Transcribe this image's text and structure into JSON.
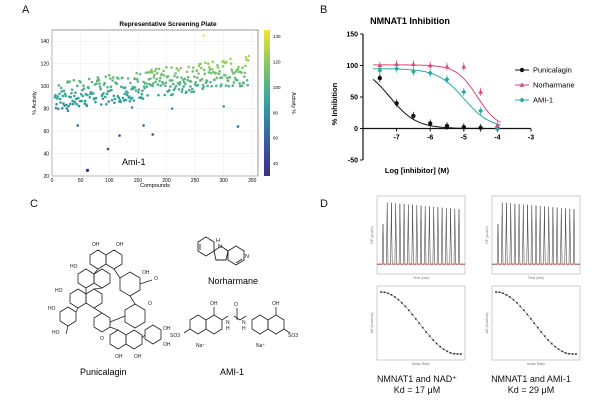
{
  "panels": {
    "a": "A",
    "b": "B",
    "c": "C",
    "d": "D"
  },
  "panel_a": {
    "chart_data": {
      "type": "scatter",
      "title": "Representative Screening Plate",
      "xlabel": "Compounds",
      "ylabel": "% Activity",
      "xlim": [
        0,
        360
      ],
      "ylim": [
        20,
        150
      ],
      "xticks": [
        "0",
        "50",
        "100",
        "150",
        "200",
        "250",
        "300",
        "350"
      ],
      "yticks": [
        "20",
        "40",
        "60",
        "80",
        "100",
        "120",
        "140"
      ],
      "colorbar": {
        "label": "Activity %",
        "ticks": [
          "40",
          "60",
          "80",
          "100",
          "120",
          "140"
        ],
        "range": [
          30,
          145
        ]
      },
      "annotation": "Ami-1",
      "highlight_point": {
        "x": 62,
        "y": 25
      },
      "outliers": [
        {
          "x": 265,
          "y": 145
        },
        {
          "x": 45,
          "y": 65
        },
        {
          "x": 118,
          "y": 56
        },
        {
          "x": 98,
          "y": 44
        },
        {
          "x": 160,
          "y": 65
        },
        {
          "x": 176,
          "y": 57
        },
        {
          "x": 325,
          "y": 64
        },
        {
          "x": 28,
          "y": 78
        },
        {
          "x": 210,
          "y": 80
        },
        {
          "x": 300,
          "y": 82
        },
        {
          "x": 140,
          "y": 81
        }
      ]
    }
  },
  "panel_b": {
    "chart_data": {
      "type": "line",
      "title": "NMNAT1 Inhibition",
      "xlabel": "Log [inhibitor] (M)",
      "ylabel": "% Inhibition",
      "xlim": [
        -8,
        -3
      ],
      "ylim": [
        -50,
        150
      ],
      "xticks": [
        "-7",
        "-6",
        "-5",
        "-4",
        "-3"
      ],
      "yticks": [
        "-50",
        "0",
        "50",
        "100",
        "150"
      ],
      "series": [
        {
          "name": "Punicalagin",
          "color": "#111111",
          "marker": "circle",
          "x": [
            -7.5,
            -7,
            -6.5,
            -6,
            -5.5,
            -5,
            -4.5,
            -4
          ],
          "y": [
            80,
            40,
            20,
            8,
            4,
            2,
            1,
            0
          ],
          "fit": {
            "top": 100,
            "bottom": 0,
            "logIC50": -7.2,
            "hill": 1.1
          }
        },
        {
          "name": "Norharmane",
          "color": "#e0457b",
          "marker": "triangle",
          "x": [
            -7.5,
            -7,
            -6.5,
            -6,
            -5.5,
            -5,
            -4.5,
            -4
          ],
          "y": [
            100,
            102,
            102,
            100,
            98,
            98,
            58,
            5
          ],
          "fit": {
            "top": 101,
            "bottom": 0,
            "logIC50": -4.6,
            "hill": 1.4
          }
        },
        {
          "name": "AMI-1",
          "color": "#2aa8a0",
          "marker": "diamond",
          "x": [
            -7.5,
            -7,
            -6.5,
            -6,
            -5.5,
            -5,
            -4.5,
            -4
          ],
          "y": [
            92,
            95,
            90,
            88,
            78,
            58,
            28,
            0
          ],
          "fit": {
            "top": 95,
            "bottom": 0,
            "logIC50": -5.0,
            "hill": 1.1
          }
        }
      ]
    }
  },
  "panel_c": {
    "compounds": [
      "Punicalagin",
      "Norharmane",
      "AMI-1"
    ],
    "atoms": {
      "oh": "OH",
      "ho": "HO",
      "o": "O",
      "nh": "NH",
      "n": "N",
      "h": "H",
      "so3": "SO3",
      "na": "Na⁺",
      "na_ion": "Na⁺",
      "hn": "N",
      "h_label": "H"
    }
  },
  "panel_d": {
    "itc": [
      {
        "caption_line1": "NMNAT1 and NAD⁺",
        "caption_line2": "Kd = 17 μM",
        "top_ylabel": "DP (μcal/s)",
        "top_xlabel": "Time (min)",
        "bottom_ylabel": "ΔH (kcal/mol)",
        "bottom_xlabel": "Molar Ratio"
      },
      {
        "caption_line1": "NMNAT1 and AMI-1",
        "caption_line2": "Kd = 29 μM",
        "top_ylabel": "DP (μcal/s)",
        "top_xlabel": "Time (min)",
        "bottom_ylabel": "ΔH (kcal/mol)",
        "bottom_xlabel": "Molar Ratio"
      }
    ]
  }
}
